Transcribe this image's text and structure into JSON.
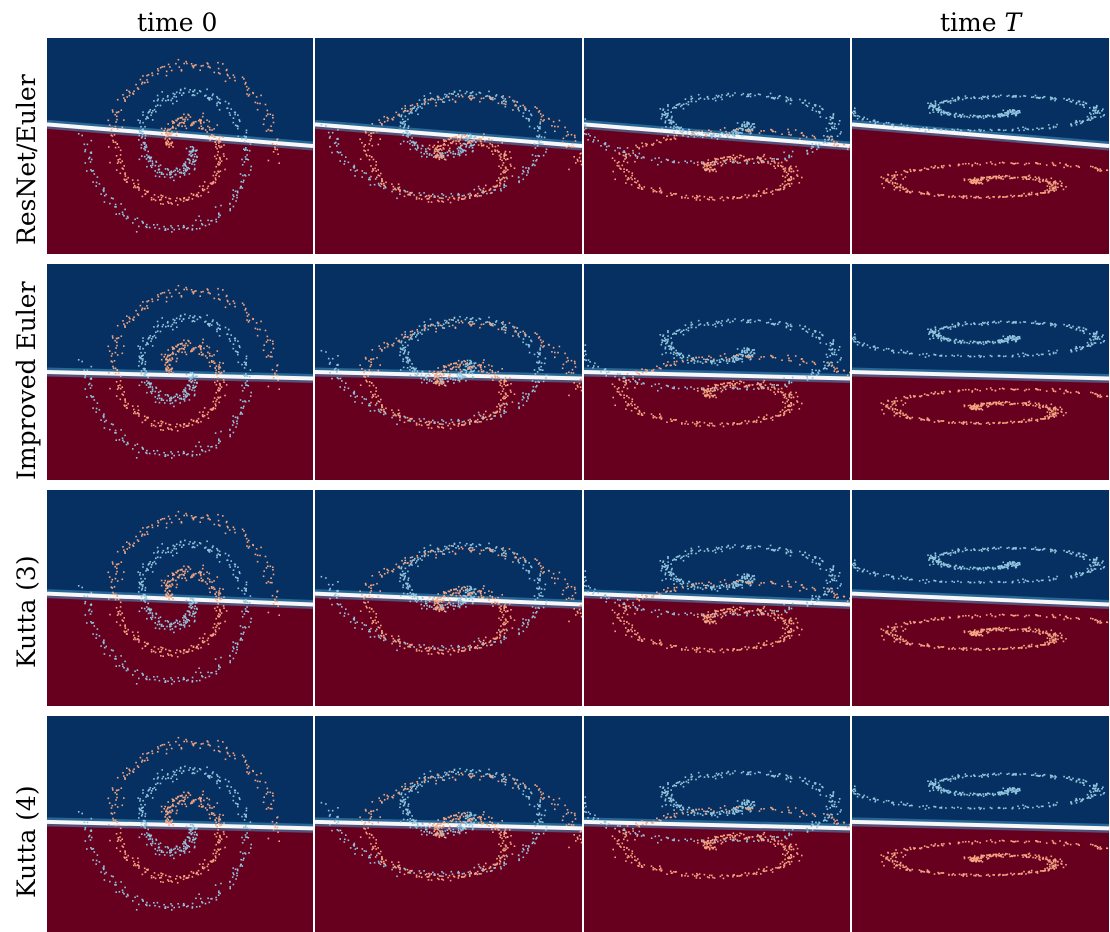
{
  "header": {
    "left_title": "time 0",
    "right_title_prefix": "time ",
    "right_title_var": "T"
  },
  "rows": [
    {
      "label": "ResNet/Euler"
    },
    {
      "label": "Improved Euler"
    },
    {
      "label": "Kutta (3)"
    },
    {
      "label": "Kutta (4)"
    }
  ],
  "colors": {
    "background_top": "#053061",
    "background_bottom": "#67001f",
    "class_a": "#92c5de",
    "class_b": "#f4a582"
  },
  "chart_data": {
    "type": "scatter",
    "title": "",
    "columns": [
      "time 0",
      "",
      "",
      "time T"
    ],
    "rows": [
      "ResNet/Euler",
      "Improved Euler",
      "Kutta (3)",
      "Kutta (4)"
    ],
    "series": [
      {
        "color": "#92c5de"
      },
      {
        "color": "#f4a582"
      }
    ],
    "points_per_class": 420,
    "spiral_turns": 1.5,
    "decision_boundary": {
      "ResNet/Euler": {
        "y_left": 0.4,
        "y_right": 0.5
      },
      "Improved Euler": {
        "y_left": 0.5,
        "y_right": 0.53
      },
      "Kutta (3)": {
        "y_left": 0.48,
        "y_right": 0.53
      },
      "Kutta (4)": {
        "y_left": 0.49,
        "y_right": 0.52
      }
    },
    "background": "heatmap (blue above boundary, red below)",
    "axes": "hidden",
    "grid": false,
    "legend": "none"
  }
}
